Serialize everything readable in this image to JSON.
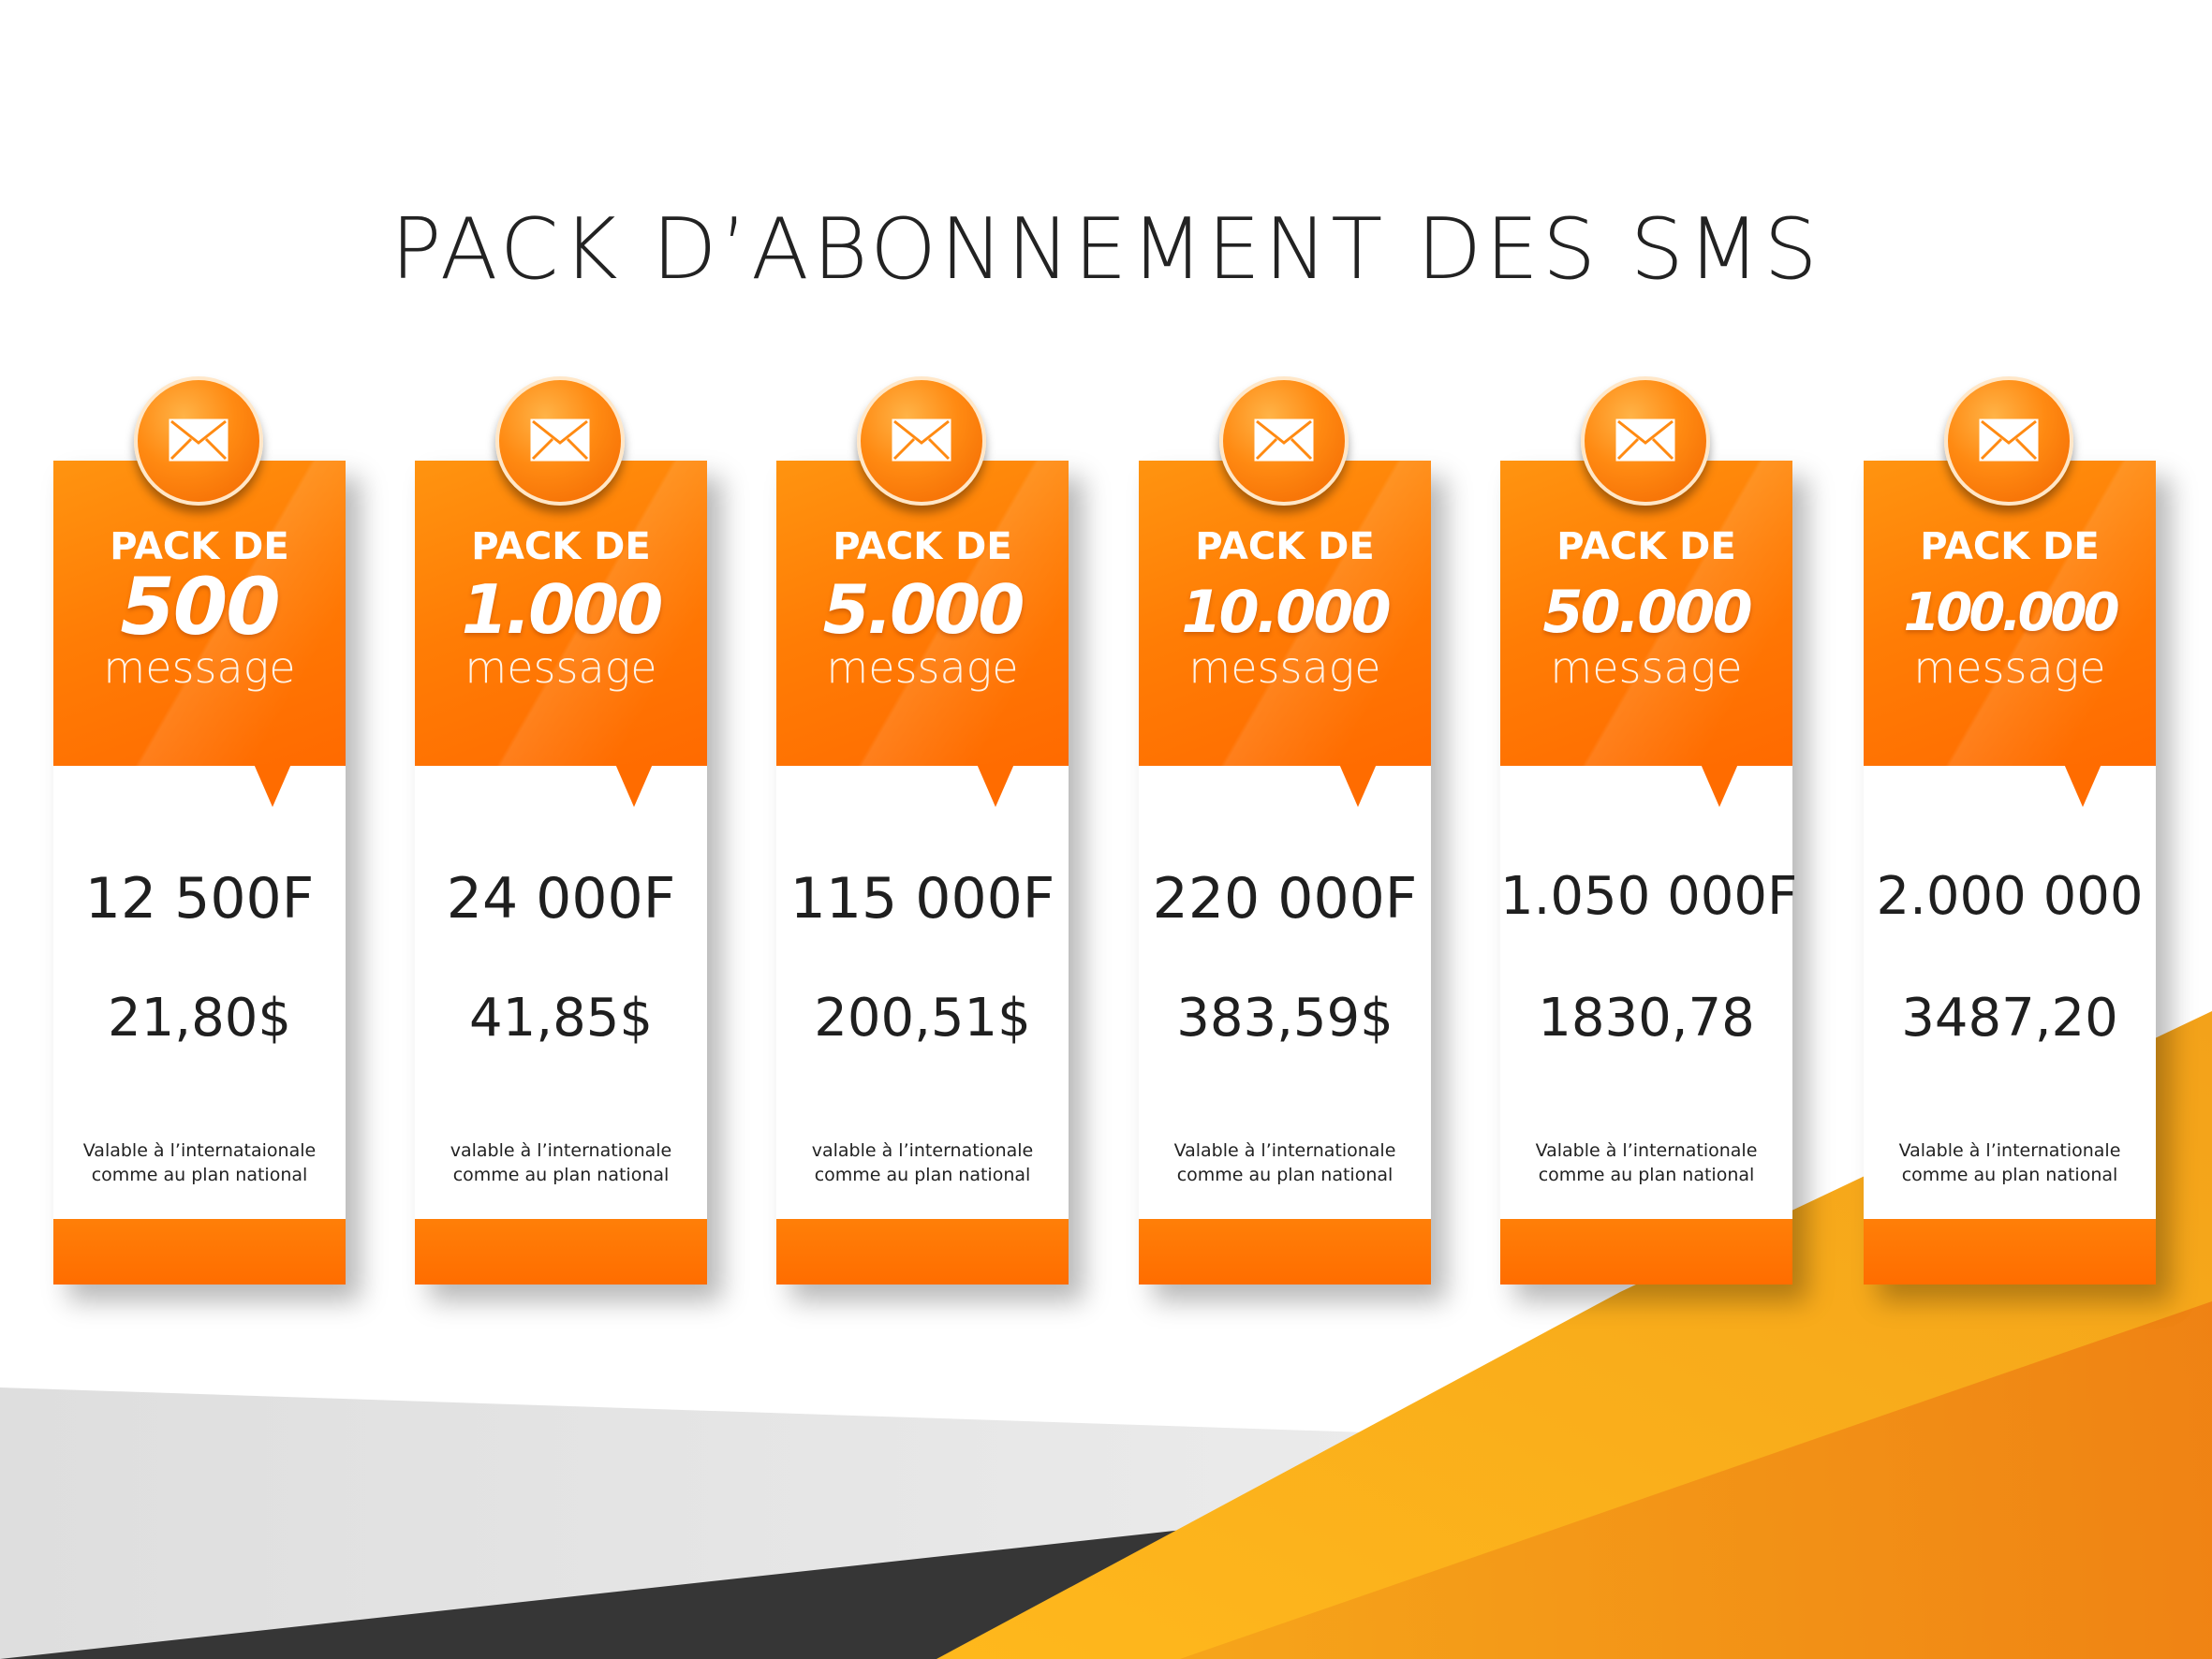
{
  "title": "PACK D’ABONNEMENT DES SMS",
  "colors": {
    "accent": "#ff7a00",
    "accent_light": "#ffa11a",
    "yellow": "#f7b51c",
    "dark": "#333333"
  },
  "icon": "envelope-icon",
  "packs": [
    {
      "label": "PACK DE",
      "quantity": "500",
      "unit": "message",
      "price_f": "12 500F",
      "price_usd": "21,80$",
      "note_line1": "Valable à l’internataionale",
      "note_line2": "comme au plan national"
    },
    {
      "label": "PACK DE",
      "quantity": "1.000",
      "unit": "message",
      "price_f": "24 000F",
      "price_usd": "41,85$",
      "note_line1": "valable à l’internationale",
      "note_line2": "comme au plan national"
    },
    {
      "label": "PACK DE",
      "quantity": "5.000",
      "unit": "message",
      "price_f": "115 000F",
      "price_usd": "200,51$",
      "note_line1": "valable à l’internationale",
      "note_line2": "comme au plan national"
    },
    {
      "label": "PACK DE",
      "quantity": "10.000",
      "unit": "message",
      "price_f": "220 000F",
      "price_usd": "383,59$",
      "note_line1": "Valable à l’internationale",
      "note_line2": "comme au plan national"
    },
    {
      "label": "PACK DE",
      "quantity": "50.000",
      "unit": "message",
      "price_f": "1.050 000F",
      "price_usd": "1830,78",
      "note_line1": "Valable à l’internationale",
      "note_line2": "comme au plan national"
    },
    {
      "label": "PACK DE",
      "quantity": "100.000",
      "unit": "message",
      "price_f": "2.000 000",
      "price_usd": "3487,20",
      "note_line1": "Valable à l’internationale",
      "note_line2": "comme au plan national"
    }
  ]
}
